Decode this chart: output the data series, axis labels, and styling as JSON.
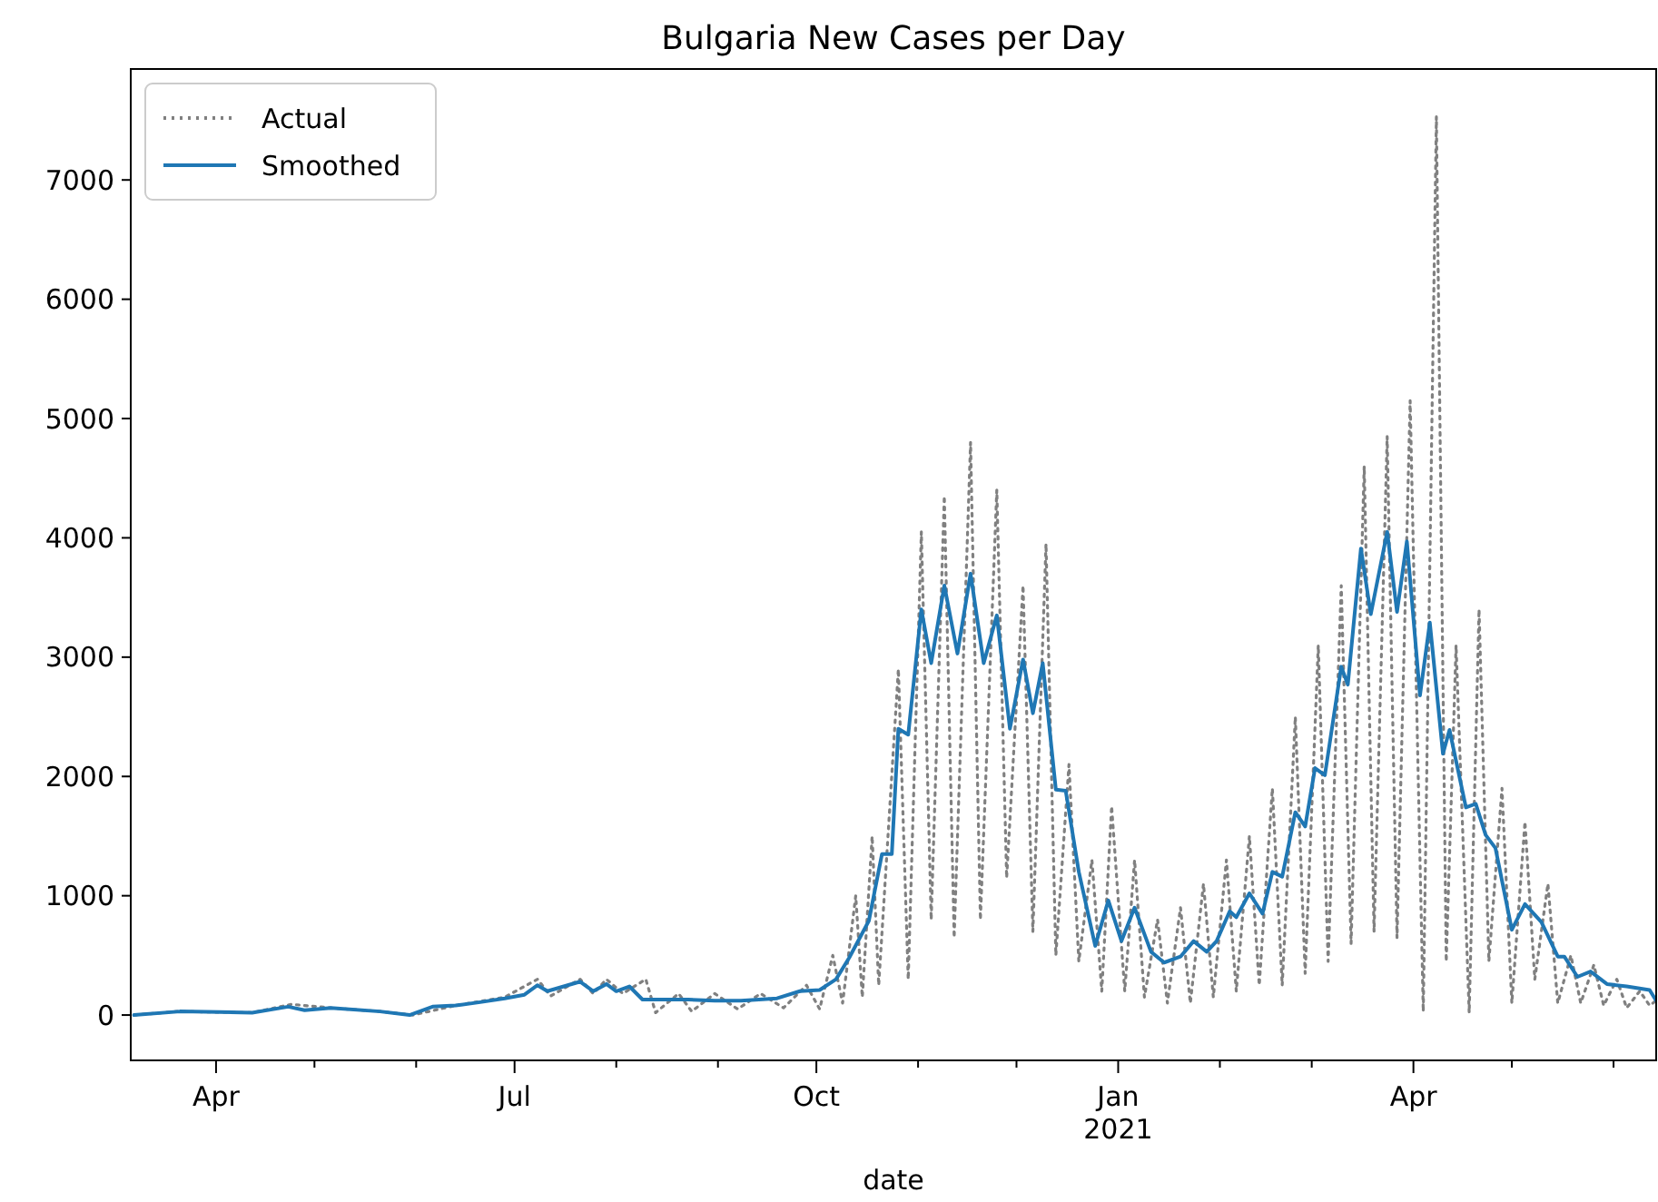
{
  "chart_data": {
    "type": "line",
    "title": "Bulgaria New Cases per Day",
    "xlabel": "date",
    "xlim": [
      "2020-03-06",
      "2021-06-14"
    ],
    "ylim": [
      -380,
      7930
    ],
    "xticks": [
      {
        "value": "2020-04-01",
        "label": "Apr"
      },
      {
        "value": "2020-05-01",
        "label": null
      },
      {
        "value": "2020-06-01",
        "label": null
      },
      {
        "value": "2020-07-01",
        "label": "Jul"
      },
      {
        "value": "2020-08-01",
        "label": null
      },
      {
        "value": "2020-09-01",
        "label": null
      },
      {
        "value": "2020-10-01",
        "label": "Oct"
      },
      {
        "value": "2020-11-01",
        "label": null
      },
      {
        "value": "2020-12-01",
        "label": null
      },
      {
        "value": "2021-01-01",
        "label": "Jan\n2021"
      },
      {
        "value": "2021-02-01",
        "label": null
      },
      {
        "value": "2021-03-01",
        "label": null
      },
      {
        "value": "2021-04-01",
        "label": "Apr"
      },
      {
        "value": "2021-05-01",
        "label": null
      },
      {
        "value": "2021-06-01",
        "label": null
      }
    ],
    "yticks": [
      0,
      1000,
      2000,
      3000,
      4000,
      5000,
      6000,
      7000
    ],
    "grid": false,
    "legend": "top left",
    "marker": "none",
    "series": [
      {
        "name": "Actual",
        "color": "#808080",
        "line_style": "dotted",
        "x": [
          "2020-03-07",
          "2020-03-20",
          "2020-04-12",
          "2020-04-24",
          "2020-05-06",
          "2020-05-21",
          "2020-05-31",
          "2020-06-13",
          "2020-06-28",
          "2020-07-08",
          "2020-07-12",
          "2020-07-21",
          "2020-07-25",
          "2020-07-29",
          "2020-08-03",
          "2020-08-10",
          "2020-08-13",
          "2020-08-20",
          "2020-08-24",
          "2020-08-31",
          "2020-09-07",
          "2020-09-14",
          "2020-09-21",
          "2020-09-28",
          "2020-10-02",
          "2020-10-06",
          "2020-10-09",
          "2020-10-13",
          "2020-10-15",
          "2020-10-18",
          "2020-10-20",
          "2020-10-26",
          "2020-10-29",
          "2020-11-02",
          "2020-11-05",
          "2020-11-09",
          "2020-11-12",
          "2020-11-17",
          "2020-11-20",
          "2020-11-25",
          "2020-11-28",
          "2020-12-03",
          "2020-12-06",
          "2020-12-10",
          "2020-12-13",
          "2020-12-17",
          "2020-12-20",
          "2020-12-24",
          "2020-12-27",
          "2020-12-30",
          "2021-01-03",
          "2021-01-06",
          "2021-01-09",
          "2021-01-13",
          "2021-01-16",
          "2021-01-20",
          "2021-01-23",
          "2021-01-27",
          "2021-01-30",
          "2021-02-03",
          "2021-02-06",
          "2021-02-10",
          "2021-02-13",
          "2021-02-17",
          "2021-02-20",
          "2021-02-24",
          "2021-02-27",
          "2021-03-03",
          "2021-03-06",
          "2021-03-10",
          "2021-03-13",
          "2021-03-17",
          "2021-03-20",
          "2021-03-24",
          "2021-03-27",
          "2021-03-31",
          "2021-04-04",
          "2021-04-08",
          "2021-04-11",
          "2021-04-14",
          "2021-04-18",
          "2021-04-21",
          "2021-04-24",
          "2021-04-28",
          "2021-05-01",
          "2021-05-05",
          "2021-05-08",
          "2021-05-12",
          "2021-05-15",
          "2021-05-19",
          "2021-05-22",
          "2021-05-26",
          "2021-05-29",
          "2021-06-02",
          "2021-06-05",
          "2021-06-09",
          "2021-06-12",
          "2021-06-14"
        ],
        "values": [
          0,
          30,
          20,
          90,
          60,
          30,
          0,
          80,
          150,
          300,
          160,
          300,
          180,
          300,
          180,
          300,
          20,
          180,
          30,
          180,
          50,
          180,
          60,
          250,
          50,
          500,
          100,
          1000,
          150,
          1500,
          250,
          2900,
          300,
          4050,
          800,
          4350,
          650,
          4800,
          800,
          4400,
          1150,
          3600,
          700,
          3950,
          500,
          2100,
          450,
          1300,
          200,
          1750,
          200,
          1300,
          150,
          800,
          100,
          900,
          100,
          1100,
          150,
          1300,
          200,
          1500,
          250,
          1900,
          250,
          2500,
          350,
          3100,
          450,
          3600,
          600,
          4600,
          700,
          4850,
          650,
          5150,
          30,
          7530,
          450,
          3100,
          20,
          3400,
          450,
          1900,
          100,
          1620,
          300,
          1100,
          100,
          500,
          100,
          420,
          80,
          300,
          60,
          200,
          80,
          120
        ]
      },
      {
        "name": "Smoothed",
        "color": "#1f77b4",
        "line_style": "solid",
        "x": [
          "2020-03-07",
          "2020-03-21",
          "2020-04-12",
          "2020-04-23",
          "2020-04-28",
          "2020-05-06",
          "2020-05-21",
          "2020-05-30",
          "2020-06-06",
          "2020-06-13",
          "2020-06-21",
          "2020-06-28",
          "2020-07-04",
          "2020-07-08",
          "2020-07-11",
          "2020-07-21",
          "2020-07-25",
          "2020-07-29",
          "2020-08-01",
          "2020-08-05",
          "2020-08-09",
          "2020-08-23",
          "2020-08-31",
          "2020-09-08",
          "2020-09-19",
          "2020-09-26",
          "2020-10-02",
          "2020-10-07",
          "2020-10-11",
          "2020-10-17",
          "2020-10-21",
          "2020-10-24",
          "2020-10-26",
          "2020-10-29",
          "2020-11-02",
          "2020-11-05",
          "2020-11-09",
          "2020-11-13",
          "2020-11-17",
          "2020-11-21",
          "2020-11-25",
          "2020-11-29",
          "2020-12-03",
          "2020-12-06",
          "2020-12-09",
          "2020-12-13",
          "2020-12-16",
          "2020-12-20",
          "2020-12-25",
          "2020-12-29",
          "2021-01-02",
          "2021-01-06",
          "2021-01-11",
          "2021-01-15",
          "2021-01-20",
          "2021-01-24",
          "2021-01-28",
          "2021-01-31",
          "2021-02-04",
          "2021-02-06",
          "2021-02-10",
          "2021-02-14",
          "2021-02-17",
          "2021-02-20",
          "2021-02-24",
          "2021-02-27",
          "2021-03-02",
          "2021-03-05",
          "2021-03-10",
          "2021-03-12",
          "2021-03-16",
          "2021-03-19",
          "2021-03-24",
          "2021-03-27",
          "2021-03-30",
          "2021-04-03",
          "2021-04-06",
          "2021-04-10",
          "2021-04-12",
          "2021-04-17",
          "2021-04-20",
          "2021-04-23",
          "2021-04-26",
          "2021-05-01",
          "2021-05-05",
          "2021-05-10",
          "2021-05-15",
          "2021-05-17",
          "2021-05-21",
          "2021-05-25",
          "2021-05-30",
          "2021-06-05",
          "2021-06-12",
          "2021-06-14"
        ],
        "values": [
          0,
          30,
          20,
          70,
          40,
          60,
          30,
          0,
          70,
          80,
          110,
          140,
          170,
          250,
          200,
          280,
          200,
          260,
          200,
          240,
          130,
          130,
          120,
          120,
          140,
          200,
          210,
          300,
          480,
          790,
          1350,
          1350,
          2400,
          2350,
          3400,
          2950,
          3600,
          3030,
          3700,
          2950,
          3350,
          2400,
          2980,
          2530,
          2950,
          1890,
          1880,
          1200,
          580,
          960,
          620,
          900,
          530,
          440,
          490,
          620,
          530,
          620,
          870,
          820,
          1020,
          850,
          1200,
          1160,
          1700,
          1580,
          2070,
          2010,
          2920,
          2770,
          3910,
          3360,
          4050,
          3380,
          3970,
          2680,
          3290,
          2190,
          2390,
          1740,
          1770,
          1510,
          1400,
          715,
          930,
          780,
          490,
          490,
          320,
          365,
          260,
          240,
          210,
          120
        ]
      }
    ]
  }
}
